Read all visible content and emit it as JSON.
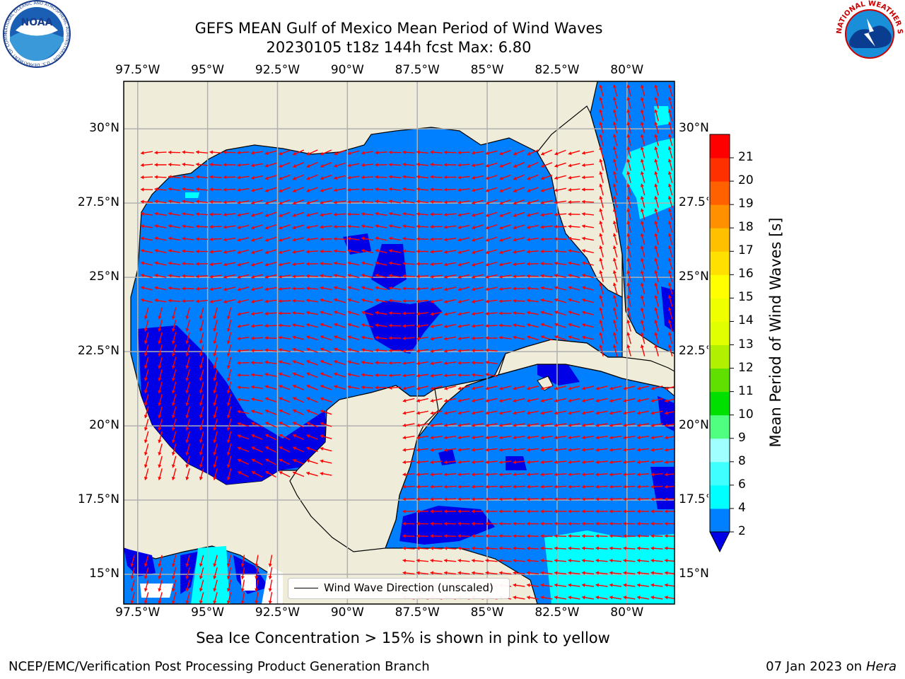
{
  "header": {
    "title_line1": "GEFS MEAN Gulf of Mexico Mean Period of Wind Waves",
    "title_line2": "20230105 t18z 144h fcst   Max: 6.80"
  },
  "logos": {
    "noaa_text": "NOAA",
    "noaa_ring_text": "NATIONAL OCEANIC AND ATMOSPHERIC ADMINISTRATION · U.S. DEPARTMENT OF COMMERCE",
    "nws_ring_text": "NATIONAL WEATHER SERVICE"
  },
  "map": {
    "lon_ticks": [
      "97.5°W",
      "95°W",
      "92.5°W",
      "90°W",
      "87.5°W",
      "85°W",
      "82.5°W",
      "80°W"
    ],
    "lat_ticks_left": [
      "30°N",
      "27.5°N",
      "25°N",
      "22.5°N",
      "20°N",
      "17.5°N",
      "15°N"
    ],
    "lat_ticks_right": [
      "30°N",
      "27.5°N",
      "25°N",
      "22.5°N",
      "20°N",
      "17.5°N",
      "15°N"
    ],
    "lon_values": [
      -97.5,
      -95,
      -92.5,
      -90,
      -87.5,
      -85,
      -82.5,
      -80
    ],
    "lat_values": [
      30,
      27.5,
      25,
      22.5,
      20,
      17.5,
      15
    ],
    "extent": {
      "lon_min": -98,
      "lon_max": -78.3,
      "lat_min": 14,
      "lat_max": 31.6
    },
    "legend_label": "Wind Wave Direction (unscaled)",
    "colors": {
      "land": "#efedd9",
      "water_2_4": "#0080ff",
      "water_lt_2": "#0000e6",
      "water_4_6": "#00ffff",
      "arrow": "#ff0000",
      "grid": "#b0b0b0"
    }
  },
  "colorbar": {
    "title": "Mean Period of Wind Waves [s]",
    "ticks": [
      "2",
      "4",
      "6",
      "8",
      "9",
      "10",
      "11",
      "12",
      "13",
      "14",
      "15",
      "16",
      "17",
      "18",
      "19",
      "20",
      "21"
    ],
    "bin_colors": [
      "#0080ff",
      "#00ffff",
      "#40ffff",
      "#a0ffff",
      "#50ff80",
      "#00e000",
      "#60e000",
      "#b0f000",
      "#e0ff00",
      "#f0ff00",
      "#ffff00",
      "#ffe000",
      "#ffc000",
      "#ff9000",
      "#ff6000",
      "#ff3000",
      "#ff0000"
    ],
    "extend_color": "#0000e6"
  },
  "note": "Sea Ice Concentration > 15% is shown in pink to yellow",
  "footer": {
    "left": "NCEP/EMC/Verification Post Processing Product Generation Branch",
    "right_date": "07 Jan 2023 on ",
    "right_host": "Hera"
  }
}
